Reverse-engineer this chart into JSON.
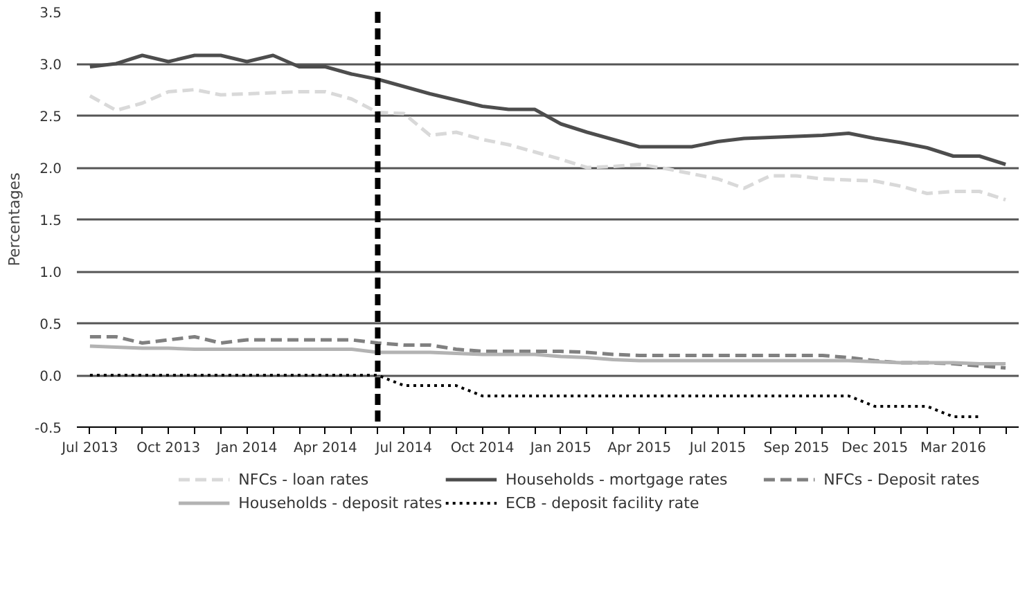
{
  "chart_data": {
    "type": "line",
    "ylabel": "Percentages",
    "categories": [
      "Jul 2013",
      null,
      null,
      "Oct 2013",
      null,
      null,
      "Jan 2014",
      null,
      null,
      "Apr 2014",
      null,
      null,
      "Jul 2014",
      null,
      null,
      "Oct 2014",
      null,
      null,
      "Jan 2015",
      null,
      null,
      "Apr 2015",
      null,
      null,
      "Jul 2015",
      null,
      null,
      "Sep 2015",
      null,
      null,
      "Dec 2015",
      null,
      null,
      "Mar 2016",
      null,
      null
    ],
    "series": [
      {
        "name": "NFCs - loan rates",
        "color": "#d9d9d9",
        "line_style": "dashed",
        "values": [
          2.69,
          2.55,
          2.62,
          2.73,
          2.75,
          2.7,
          2.71,
          2.72,
          2.73,
          2.73,
          2.66,
          2.53,
          2.52,
          2.31,
          2.34,
          2.27,
          2.22,
          2.15,
          2.08,
          2.0,
          2.01,
          2.03,
          1.99,
          1.94,
          1.89,
          1.8,
          1.92,
          1.92,
          1.89,
          1.88,
          1.87,
          1.82,
          1.75,
          1.77,
          1.77,
          1.69
        ]
      },
      {
        "name": "Households - mortgage rates",
        "color": "#4d4d4d",
        "line_style": "solid",
        "values": [
          2.97,
          3.0,
          3.08,
          3.02,
          3.08,
          3.08,
          3.02,
          3.08,
          2.97,
          2.97,
          2.9,
          2.85,
          2.78,
          2.71,
          2.65,
          2.59,
          2.56,
          2.56,
          2.42,
          2.34,
          2.27,
          2.2,
          2.2,
          2.2,
          2.25,
          2.28,
          2.29,
          2.3,
          2.31,
          2.33,
          2.28,
          2.24,
          2.19,
          2.11,
          2.11,
          2.03
        ]
      },
      {
        "name": "NFCs - Deposit rates",
        "color": "#808080",
        "line_style": "dashed",
        "values": [
          0.37,
          0.37,
          0.31,
          0.34,
          0.37,
          0.31,
          0.34,
          0.34,
          0.34,
          0.34,
          0.34,
          0.31,
          0.29,
          0.29,
          0.25,
          0.23,
          0.23,
          0.23,
          0.23,
          0.22,
          0.2,
          0.19,
          0.19,
          0.19,
          0.19,
          0.19,
          0.19,
          0.19,
          0.19,
          0.17,
          0.14,
          0.12,
          0.12,
          0.11,
          0.09,
          0.07
        ]
      },
      {
        "name": "Households - deposit rates",
        "color": "#b3b3b3",
        "line_style": "solid",
        "values": [
          0.28,
          0.27,
          0.26,
          0.26,
          0.25,
          0.25,
          0.25,
          0.25,
          0.25,
          0.25,
          0.25,
          0.22,
          0.22,
          0.22,
          0.21,
          0.2,
          0.2,
          0.2,
          0.18,
          0.17,
          0.15,
          0.14,
          0.14,
          0.14,
          0.14,
          0.14,
          0.14,
          0.14,
          0.14,
          0.14,
          0.13,
          0.12,
          0.12,
          0.12,
          0.11,
          0.11
        ]
      },
      {
        "name": "ECB - deposit facility rate",
        "color": "#000000",
        "line_style": "dotted",
        "values": [
          0.0,
          0.0,
          0.0,
          0.0,
          0.0,
          0.0,
          0.0,
          0.0,
          0.0,
          0.0,
          0.0,
          0.0,
          -0.1,
          -0.1,
          -0.1,
          -0.2,
          -0.2,
          -0.2,
          -0.2,
          -0.2,
          -0.2,
          -0.2,
          -0.2,
          -0.2,
          -0.2,
          -0.2,
          -0.2,
          -0.2,
          -0.2,
          -0.2,
          -0.3,
          -0.3,
          -0.3,
          -0.4,
          -0.4,
          null
        ]
      }
    ],
    "ylim": [
      -0.5,
      3.5
    ],
    "yticks": [
      {
        "value": -0.5,
        "label": "-0.5"
      },
      {
        "value": 0,
        "label": "0.0"
      },
      0.5,
      {
        "value": 1,
        "label": "1.0"
      },
      1.5,
      {
        "value": 2,
        "label": "2.0"
      },
      2.5,
      {
        "value": 3,
        "label": "3.0"
      },
      3.5
    ],
    "grid": "y",
    "legend": "bottom",
    "marker": "none"
  }
}
